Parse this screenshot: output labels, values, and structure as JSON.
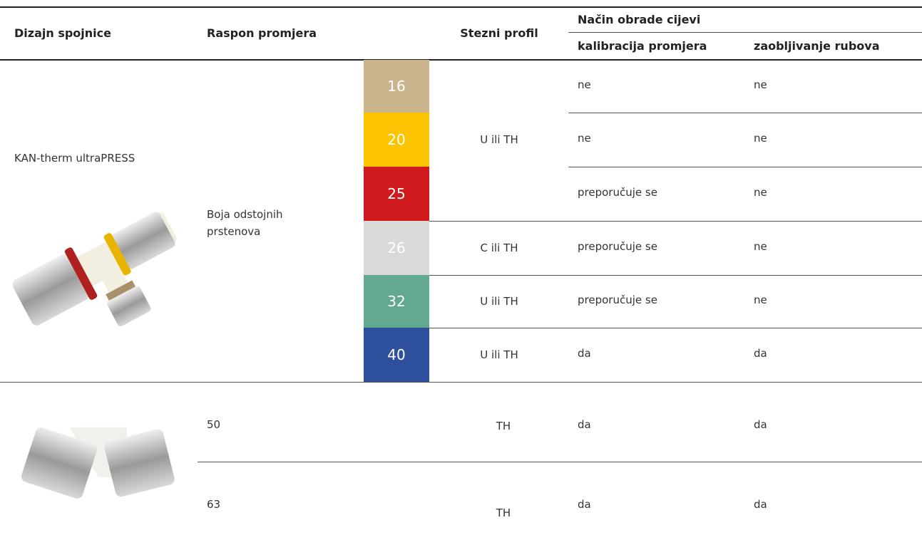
{
  "header": {
    "design": "Dizajn spojnice",
    "range": "Raspon promjera",
    "profile": "Stezni profil",
    "processing": "Način obrade cijevi",
    "calibration": "kalibracija promjera",
    "chamfer": "zaobljivanje rubova"
  },
  "table": {
    "group1": {
      "name": "KAN-therm ultraPRESS",
      "range_label": "Boja odstojnih prstenova",
      "rows": [
        {
          "size": "16",
          "color": "#c9b48e",
          "calibration": "ne",
          "chamfer": "ne"
        },
        {
          "size": "20",
          "color": "#fcc400",
          "calibration": "ne",
          "chamfer": "ne"
        },
        {
          "size": "25",
          "color": "#d0191c",
          "calibration": "preporučuje se",
          "chamfer": "ne"
        },
        {
          "size": "26",
          "color": "#d9d9d9",
          "calibration": "preporučuje se",
          "chamfer": "ne"
        },
        {
          "size": "32",
          "color": "#62a98f",
          "calibration": "preporučuje se",
          "chamfer": "ne"
        },
        {
          "size": "40",
          "color": "#2d4f9c",
          "calibration": "da",
          "chamfer": "da"
        }
      ],
      "profiles": [
        "U ili TH",
        "C ili TH",
        "U ili TH",
        "U ili TH"
      ]
    },
    "group2": {
      "rows": [
        {
          "size": "50",
          "profile": "TH",
          "calibration": "da",
          "chamfer": "da"
        },
        {
          "size": "63",
          "profile": "TH",
          "calibration": "da",
          "chamfer": "da"
        }
      ]
    }
  }
}
